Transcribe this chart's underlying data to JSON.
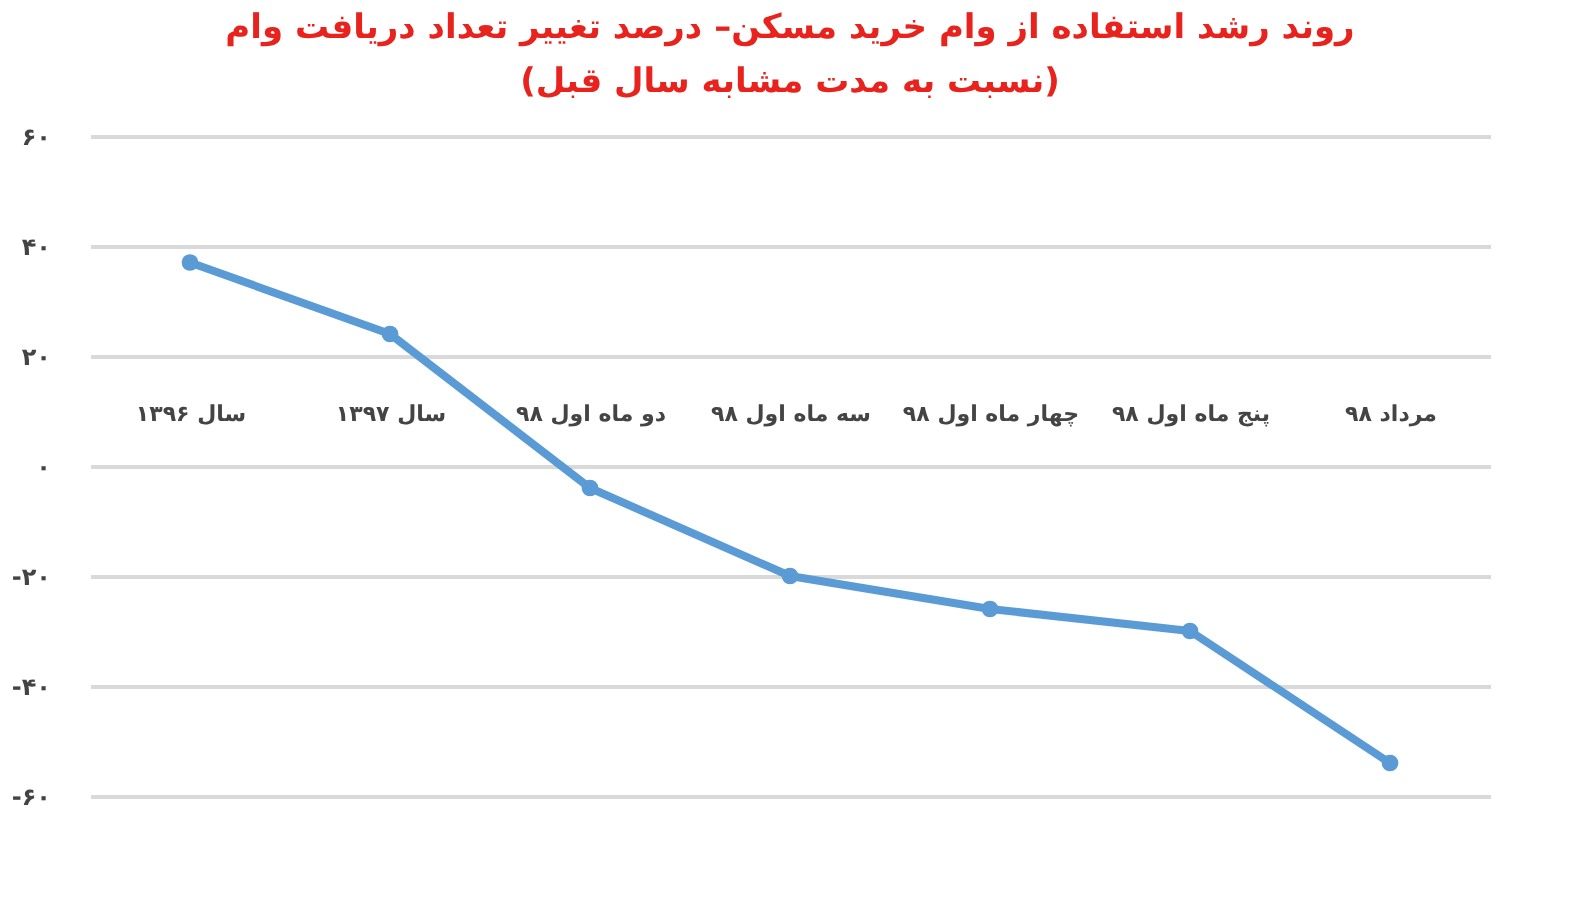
{
  "chart_data": {
    "type": "line",
    "title": "روند رشد استفاده از وام خرید مسکن– درصد تغییر تعداد دریافت وام",
    "subtitle": "(نسبت به مدت مشابه سال قبل)",
    "categories": [
      "سال ۱۳۹۶",
      "سال ۱۳۹۷",
      "دو ماه اول ۹۸",
      "سه ماه اول ۹۸",
      "چهار ماه اول ۹۸",
      "پنج ماه اول ۹۸",
      "مرداد ۹۸"
    ],
    "series": [
      {
        "color": "#5b9bd5",
        "values": [
          37,
          24,
          -4,
          -20,
          -26,
          -30,
          -54
        ]
      }
    ],
    "ylim": [
      -60,
      60
    ],
    "yticks": [
      {
        "value": 60,
        "label": "۶۰"
      },
      {
        "value": 40,
        "label": "۴۰"
      },
      {
        "value": 20,
        "label": "۲۰"
      },
      {
        "value": 0,
        "label": "۰"
      },
      {
        "value": -20,
        "label": "-۲۰"
      },
      {
        "value": -40,
        "label": "-۴۰"
      },
      {
        "value": -60,
        "label": "-۶۰"
      }
    ],
    "grid": "y",
    "marker": "circle",
    "line_style": "solid",
    "legend": false
  }
}
